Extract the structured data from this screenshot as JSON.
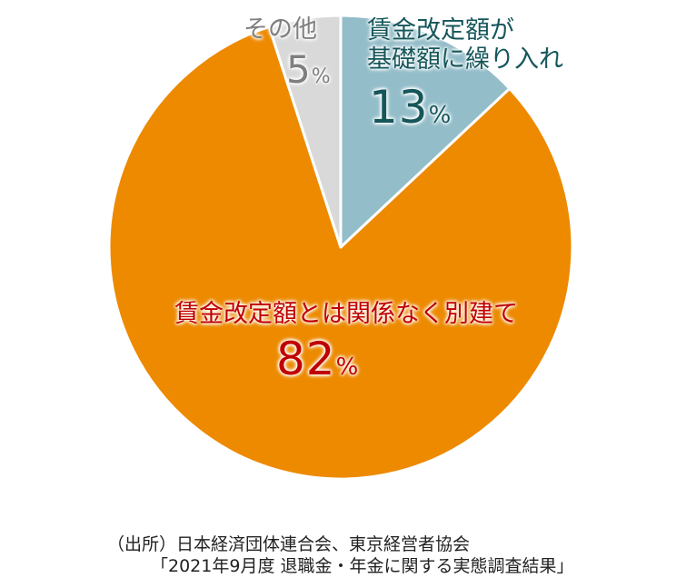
{
  "chart_data": {
    "type": "pie",
    "start": "top",
    "direction": "clockwise",
    "slices": [
      {
        "label_lines": [
          "賃金改定額が",
          "基礎額に繰り入れ"
        ],
        "value": 13,
        "value_text": "13",
        "unit": "%",
        "color": "#93bdc9",
        "text_color": "#15565a"
      },
      {
        "label_lines": [
          "賃金改定額とは関係なく別建て"
        ],
        "value": 82,
        "value_text": "82",
        "unit": "%",
        "color": "#ed8a00",
        "text_color": "#c00000"
      },
      {
        "label_lines": [
          "その他"
        ],
        "value": 5,
        "value_text": "5",
        "unit": "%",
        "color": "#d9d9d9",
        "text_color": "#7f7f7f"
      }
    ]
  },
  "source": {
    "line1": "（出所）日本経済団体連合会、東京経営者協会",
    "line2": "「2021年9月度 退職金・年金に関する実態調査結果」"
  }
}
